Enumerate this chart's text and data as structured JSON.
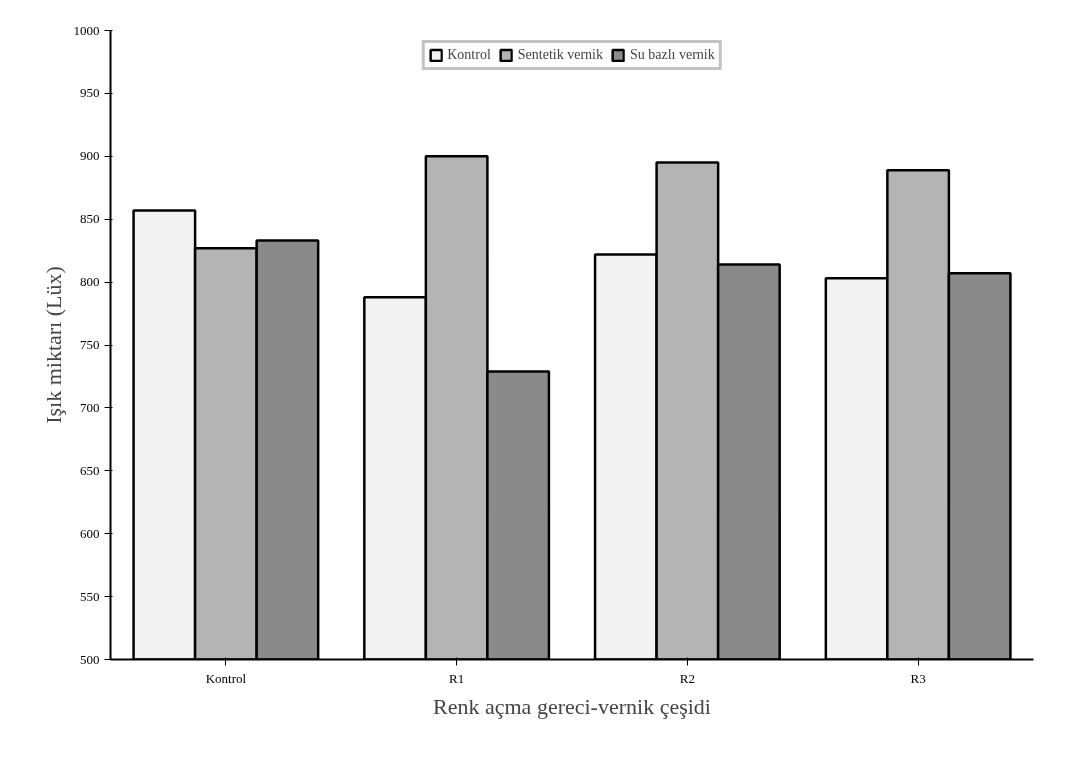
{
  "chart_data": {
    "type": "bar",
    "xlabel": "Renk açma gereci-vernik çeşidi",
    "ylabel": "Işık miktarı (Lüx)",
    "categories": [
      "Kontrol",
      "R1",
      "R2",
      "R3"
    ],
    "series": [
      {
        "name": "Kontrol",
        "color": "#f2f2f2",
        "values": [
          857,
          788,
          822,
          803
        ]
      },
      {
        "name": "Sentetik vernik",
        "color": "#b4b4b4",
        "values": [
          827,
          900,
          895,
          889
        ]
      },
      {
        "name": "Su bazlı vernik",
        "color": "#8a8a8a",
        "values": [
          833,
          729,
          814,
          807
        ]
      }
    ],
    "ylim": [
      500,
      1000
    ],
    "yticks": [
      500,
      550,
      600,
      650,
      700,
      750,
      800,
      850,
      900,
      950,
      1000
    ],
    "grid": false,
    "legend": "top"
  }
}
